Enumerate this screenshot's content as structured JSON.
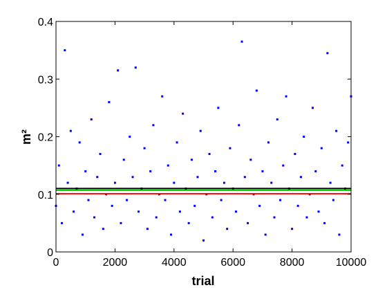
{
  "chart_data": {
    "type": "scatter",
    "xlabel": "trial",
    "ylabel": "m²",
    "xlim": [
      0,
      10000
    ],
    "ylim": [
      0,
      0.4
    ],
    "xticks": [
      0,
      2000,
      4000,
      6000,
      8000,
      10000
    ],
    "yticks": [
      0,
      0.1,
      0.2,
      0.3,
      0.4
    ],
    "series": [
      {
        "kind": "points",
        "color": "#0000ff",
        "x": [
          0,
          100,
          200,
          300,
          400,
          500,
          600,
          700,
          800,
          900,
          1000,
          1100,
          1200,
          1300,
          1400,
          1500,
          1600,
          1700,
          1800,
          1900,
          2000,
          2100,
          2200,
          2300,
          2400,
          2500,
          2600,
          2700,
          2800,
          2900,
          3000,
          3100,
          3200,
          3300,
          3400,
          3500,
          3600,
          3700,
          3800,
          3900,
          4000,
          4100,
          4200,
          4300,
          4400,
          4500,
          4600,
          4700,
          4800,
          4900,
          5000,
          5100,
          5200,
          5300,
          5400,
          5500,
          5600,
          5700,
          5800,
          5900,
          6000,
          6100,
          6200,
          6300,
          6400,
          6500,
          6600,
          6700,
          6800,
          6900,
          7000,
          7100,
          7200,
          7300,
          7400,
          7500,
          7600,
          7700,
          7800,
          7900,
          8000,
          8100,
          8200,
          8300,
          8400,
          8500,
          8600,
          8700,
          8800,
          8900,
          9000,
          9100,
          9200,
          9300,
          9400,
          9500,
          9600,
          9700,
          9800,
          9900,
          10000
        ],
        "values": [
          0.08,
          0.15,
          0.05,
          0.35,
          0.12,
          0.21,
          0.07,
          0.11,
          0.19,
          0.03,
          0.14,
          0.09,
          0.23,
          0.06,
          0.13,
          0.17,
          0.04,
          0.1,
          0.26,
          0.08,
          0.12,
          0.315,
          0.05,
          0.16,
          0.09,
          0.2,
          0.13,
          0.32,
          0.07,
          0.11,
          0.18,
          0.04,
          0.14,
          0.22,
          0.06,
          0.1,
          0.27,
          0.09,
          0.15,
          0.03,
          0.12,
          0.19,
          0.07,
          0.24,
          0.11,
          0.05,
          0.16,
          0.08,
          0.13,
          0.21,
          0.02,
          0.1,
          0.17,
          0.06,
          0.14,
          0.25,
          0.09,
          0.12,
          0.04,
          0.18,
          0.11,
          0.07,
          0.22,
          0.365,
          0.13,
          0.05,
          0.16,
          0.1,
          0.28,
          0.08,
          0.14,
          0.03,
          0.19,
          0.12,
          0.06,
          0.23,
          0.09,
          0.15,
          0.27,
          0.11,
          0.04,
          0.17,
          0.08,
          0.13,
          0.2,
          0.06,
          0.1,
          0.25,
          0.14,
          0.07,
          0.18,
          0.05,
          0.345,
          0.12,
          0.09,
          0.21,
          0.03,
          0.15,
          0.11,
          0.19,
          0.27
        ]
      },
      {
        "kind": "line",
        "color": "#000000",
        "x": [
          0,
          10000
        ],
        "values": [
          0.11,
          0.11
        ]
      },
      {
        "kind": "line",
        "color": "#00cc00",
        "x": [
          0,
          10000
        ],
        "values": [
          0.107,
          0.107
        ]
      },
      {
        "kind": "line",
        "color": "#ff0000",
        "x": [
          0,
          10000
        ],
        "values": [
          0.101,
          0.101
        ]
      }
    ]
  }
}
